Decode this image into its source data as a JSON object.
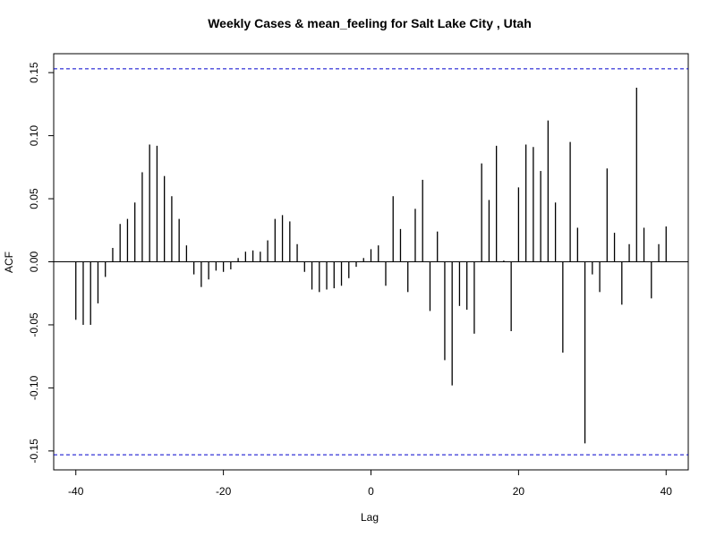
{
  "chart_data": {
    "type": "bar",
    "title": "Weekly Cases & mean_feeling for Salt Lake City , Utah",
    "xlabel": "Lag",
    "ylabel": "ACF",
    "xlim": [
      -43,
      43
    ],
    "ylim": [
      -0.165,
      0.165
    ],
    "x_ticks": [
      -40,
      -20,
      0,
      20,
      40
    ],
    "x_tick_labels": [
      "-40",
      "-20",
      "0",
      "20",
      "40"
    ],
    "y_ticks": [
      -0.15,
      -0.1,
      -0.05,
      0.0,
      0.05,
      0.1,
      0.15
    ],
    "y_tick_labels": [
      "-0.15",
      "-0.10",
      "-0.05",
      "0.00",
      "0.05",
      "0.10",
      "0.15"
    ],
    "confidence_bound": 0.153,
    "confidence_color": "#0000cc",
    "bar_color": "#000000",
    "grid": false,
    "lags": [
      -40,
      -39,
      -38,
      -37,
      -36,
      -35,
      -34,
      -33,
      -32,
      -31,
      -30,
      -29,
      -28,
      -27,
      -26,
      -25,
      -24,
      -23,
      -22,
      -21,
      -20,
      -19,
      -18,
      -17,
      -16,
      -15,
      -14,
      -13,
      -12,
      -11,
      -10,
      -9,
      -8,
      -7,
      -6,
      -5,
      -4,
      -3,
      -2,
      -1,
      0,
      1,
      2,
      3,
      4,
      5,
      6,
      7,
      8,
      9,
      10,
      11,
      12,
      13,
      14,
      15,
      16,
      17,
      18,
      19,
      20,
      21,
      22,
      23,
      24,
      25,
      26,
      27,
      28,
      29,
      30,
      31,
      32,
      33,
      34,
      35,
      36,
      37,
      38,
      39,
      40
    ],
    "values": [
      -0.046,
      -0.05,
      -0.05,
      -0.033,
      -0.012,
      0.011,
      0.03,
      0.034,
      0.047,
      0.071,
      0.093,
      0.092,
      0.068,
      0.052,
      0.034,
      0.013,
      -0.01,
      -0.02,
      -0.014,
      -0.007,
      -0.008,
      -0.006,
      0.003,
      0.008,
      0.009,
      0.008,
      0.017,
      0.034,
      0.037,
      0.032,
      0.014,
      -0.008,
      -0.022,
      -0.024,
      -0.022,
      -0.021,
      -0.019,
      -0.013,
      -0.004,
      0.003,
      0.01,
      0.013,
      -0.019,
      0.052,
      0.026,
      -0.024,
      0.042,
      0.065,
      -0.039,
      0.024,
      -0.078,
      -0.098,
      -0.035,
      -0.038,
      -0.057,
      0.078,
      0.049,
      0.092,
      0.001,
      -0.055,
      0.059,
      0.093,
      0.091,
      0.072,
      0.112,
      0.047,
      -0.072,
      0.095,
      0.027,
      -0.144,
      -0.01,
      -0.024,
      0.074,
      0.023,
      -0.034,
      0.014,
      0.138,
      0.027,
      -0.029,
      0.014,
      0.028
    ]
  }
}
